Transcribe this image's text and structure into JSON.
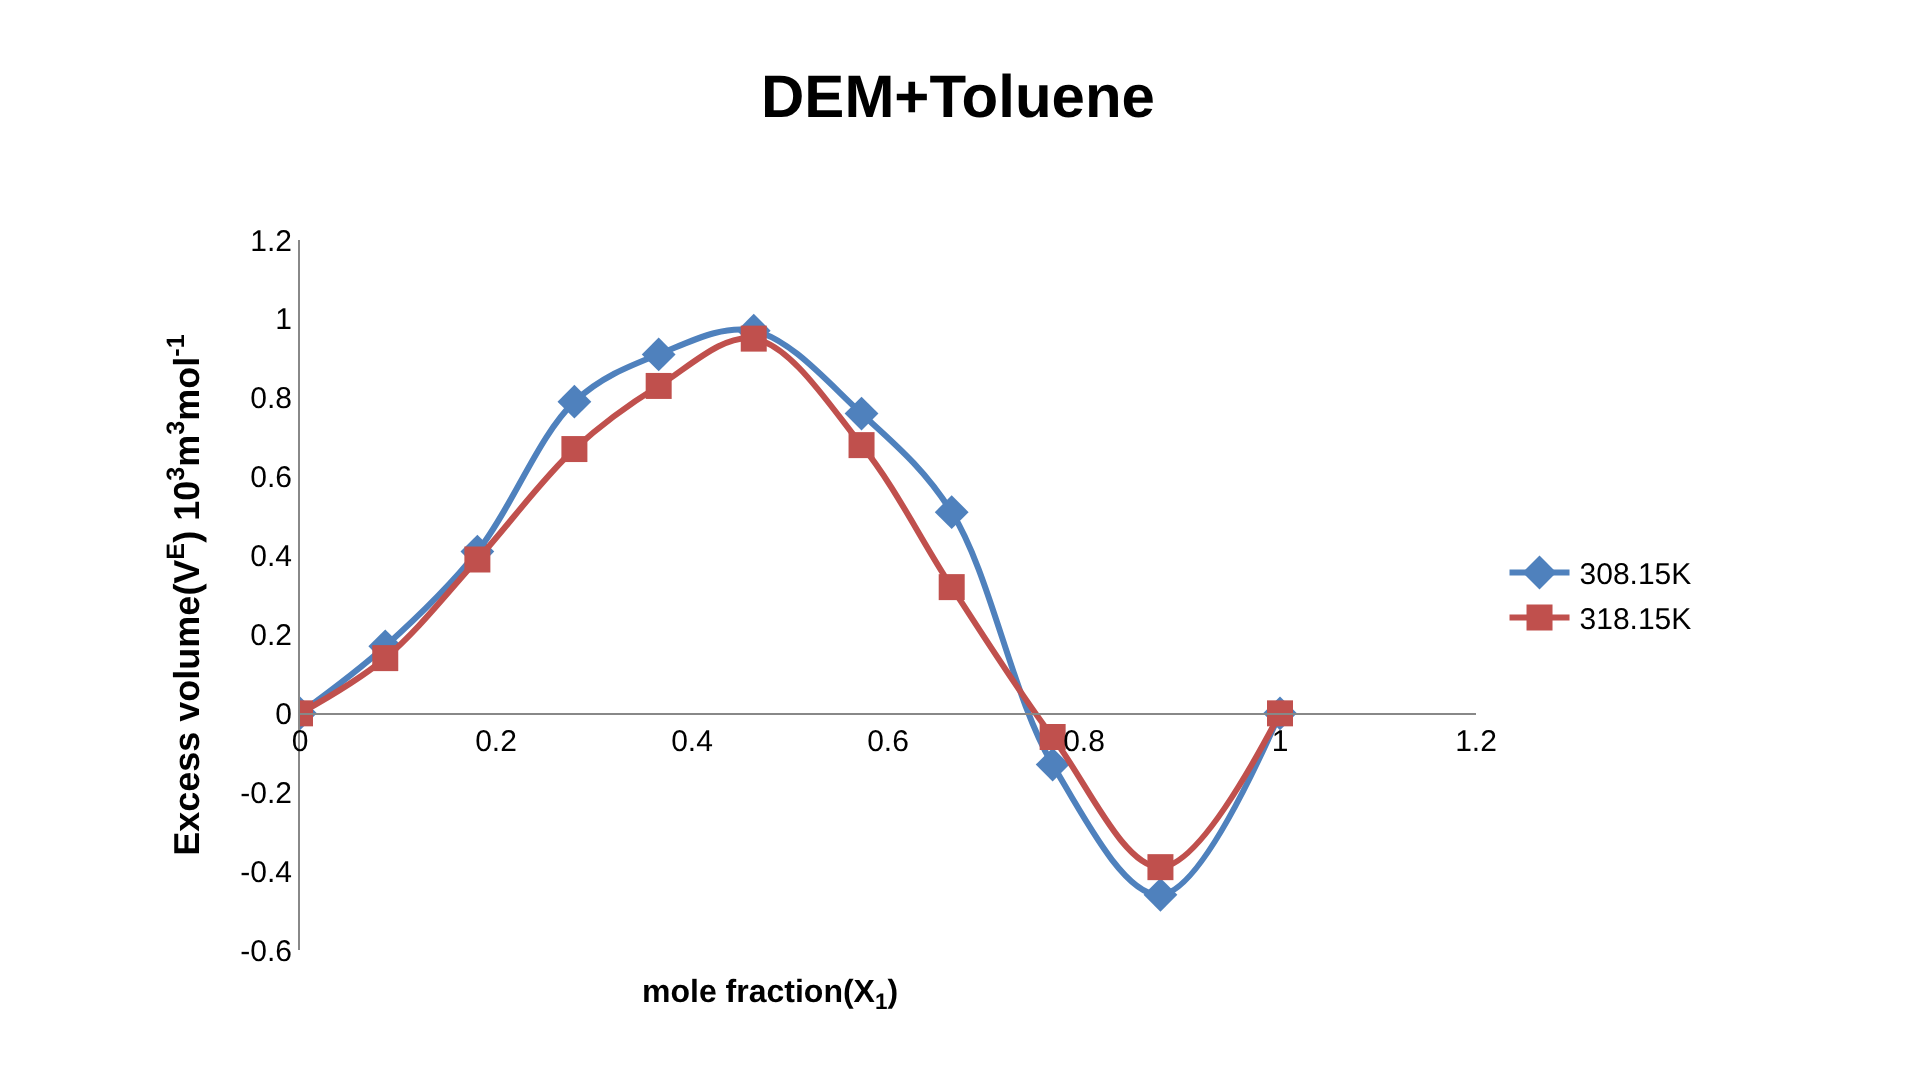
{
  "chart_data": {
    "type": "line",
    "title": "DEM+Toluene",
    "xlabel": "mole fraction(X$_{1}$)",
    "ylabel": "Excess volume(V$^{E}$) 10$^{3}$m$^{3}$mol$^{-1}$",
    "x": [
      0,
      0.087,
      0.181,
      0.28,
      0.366,
      0.463,
      0.573,
      0.665,
      0.768,
      0.878,
      1.0
    ],
    "series": [
      {
        "name": "308.15K",
        "color": "#4f81bd",
        "marker": "diamond",
        "values": [
          0,
          0.17,
          0.41,
          0.79,
          0.91,
          0.97,
          0.76,
          0.51,
          -0.13,
          -0.46,
          0
        ]
      },
      {
        "name": "318.15K",
        "color": "#c0504d",
        "marker": "square",
        "values": [
          0,
          0.14,
          0.39,
          0.67,
          0.83,
          0.95,
          0.68,
          0.32,
          -0.06,
          -0.39,
          0
        ]
      }
    ],
    "xlim": [
      0,
      1.2
    ],
    "xticks": [
      0,
      0.2,
      0.4,
      0.6,
      0.8,
      1,
      1.2
    ],
    "ylim": [
      -0.6,
      1.2
    ],
    "yticks": [
      -0.6,
      -0.4,
      -0.2,
      0,
      0.2,
      0.4,
      0.6,
      0.8,
      1,
      1.2
    ],
    "legend": "right"
  }
}
